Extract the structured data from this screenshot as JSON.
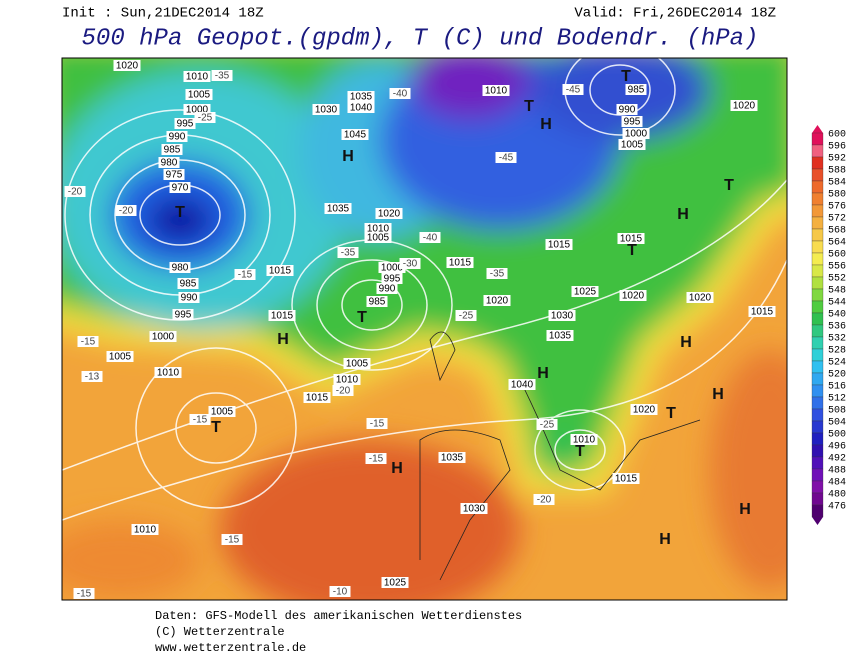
{
  "header": {
    "init": "Init : Sun,21DEC2014 18Z",
    "valid": "Valid: Fri,26DEC2014 18Z",
    "title": "500 hPa Geopot.(gpdm), T (C) und Bodendr. (hPa)"
  },
  "legend": {
    "levels": [
      600,
      596,
      592,
      588,
      584,
      580,
      576,
      572,
      568,
      564,
      560,
      556,
      552,
      548,
      544,
      540,
      536,
      532,
      528,
      524,
      520,
      516,
      512,
      508,
      504,
      500,
      496,
      492,
      488,
      484,
      480,
      476
    ],
    "colors": [
      "#e0105a",
      "#f06080",
      "#e03020",
      "#e8502a",
      "#ee6a2c",
      "#f08030",
      "#f29838",
      "#f4b040",
      "#f6c848",
      "#f8dc50",
      "#f4ec50",
      "#d8e848",
      "#b0e040",
      "#80d840",
      "#50cc40",
      "#30c050",
      "#30c880",
      "#30d0b0",
      "#30d0d8",
      "#30c0f0",
      "#30a8f0",
      "#3090f0",
      "#3070e8",
      "#3050e0",
      "#2838d0",
      "#2020c0",
      "#3010b0",
      "#5010b8",
      "#7010b8",
      "#8010a8",
      "#700890",
      "#500070"
    ]
  },
  "map": {
    "centers": [
      "T",
      "T",
      "T",
      "T",
      "T",
      "T",
      "T",
      "H",
      "H",
      "H",
      "H",
      "H",
      "H",
      "H",
      "H",
      "H",
      "H",
      "H",
      "T",
      "T"
    ],
    "pressure_labels": [
      "1020",
      "1010",
      "1005",
      "1000",
      "995",
      "990",
      "985",
      "980",
      "975",
      "970",
      "980",
      "985",
      "990",
      "995",
      "1000",
      "1005",
      "1010",
      "1005",
      "1010",
      "1015",
      "1015",
      "1005",
      "1010",
      "1015",
      "1030",
      "1035",
      "1040",
      "1045",
      "1035",
      "1020",
      "1010",
      "1005",
      "1000",
      "995",
      "990",
      "985",
      "1015",
      "1020",
      "1010",
      "1030",
      "1035",
      "1040",
      "1025",
      "1020",
      "1015",
      "1015",
      "1020",
      "1015",
      "985",
      "990",
      "995",
      "1000",
      "1005",
      "1020",
      "1010",
      "1015",
      "1020",
      "1035",
      "1030",
      "1025"
    ],
    "temperature_labels": [
      "-35",
      "-25",
      "-20",
      "-20",
      "-15",
      "-15",
      "-13",
      "-15",
      "-40",
      "-45",
      "-35",
      "-30",
      "-25",
      "-20",
      "-15",
      "-15",
      "-35",
      "-40",
      "-45",
      "-25",
      "-20",
      "-15",
      "-10",
      "-15"
    ]
  },
  "footer": {
    "lines": [
      "Daten: GFS-Modell des amerikanischen Wetterdienstes",
      "(C) Wetterzentrale",
      "www.wetterzentrale.de"
    ]
  }
}
